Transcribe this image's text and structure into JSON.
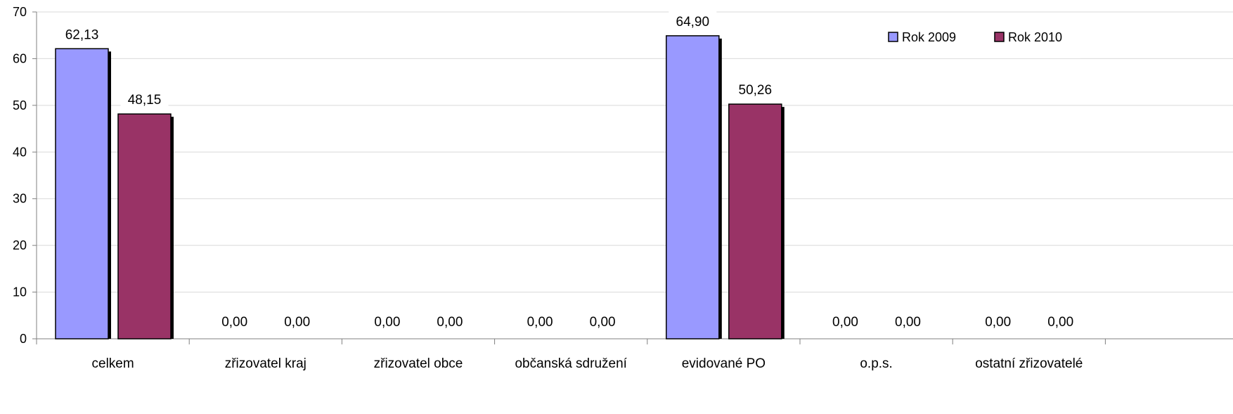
{
  "chart_data": {
    "type": "bar",
    "categories": [
      "celkem",
      "zřizovatel kraj",
      "zřizovatel obce",
      "občanská sdružení",
      "evidované PO",
      "o.p.s.",
      "ostatní zřizovatelé"
    ],
    "series": [
      {
        "name": "Rok 2009",
        "values": [
          62.13,
          0.0,
          0.0,
          0.0,
          64.9,
          0.0,
          0.0
        ],
        "labels": [
          "62,13",
          "0,00",
          "0,00",
          "0,00",
          "64,90",
          "0,00",
          "0,00"
        ],
        "color": "#9999ff"
      },
      {
        "name": "Rok 2010",
        "values": [
          48.15,
          0.0,
          0.0,
          0.0,
          50.26,
          0.0,
          0.0
        ],
        "labels": [
          "48,15",
          "0,00",
          "0,00",
          "0,00",
          "50,26",
          "0,00",
          "0,00"
        ],
        "color": "#993366"
      }
    ],
    "ylim": [
      0,
      70
    ],
    "yticks": [
      0,
      10,
      20,
      30,
      40,
      50,
      60,
      70
    ],
    "grid": true,
    "legend": "top-right",
    "title": "",
    "xlabel": "",
    "ylabel": ""
  }
}
